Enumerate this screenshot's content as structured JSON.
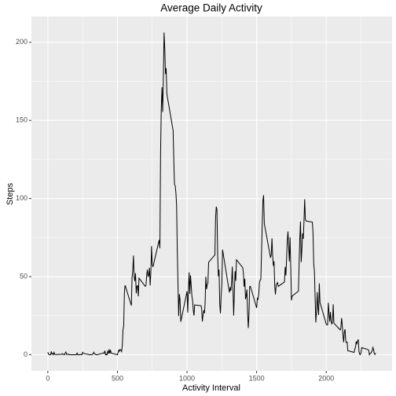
{
  "chart_data": {
    "type": "line",
    "title": "Average Daily Activity",
    "x_label": "Activity Interval",
    "y_label": "Steps",
    "x": [
      0,
      5,
      10,
      15,
      20,
      25,
      30,
      35,
      40,
      45,
      50,
      55,
      100,
      105,
      110,
      115,
      120,
      125,
      130,
      135,
      140,
      145,
      150,
      155,
      200,
      205,
      210,
      215,
      220,
      225,
      230,
      235,
      240,
      245,
      250,
      255,
      300,
      305,
      310,
      315,
      320,
      325,
      330,
      335,
      340,
      345,
      350,
      355,
      400,
      405,
      410,
      415,
      420,
      425,
      430,
      435,
      440,
      445,
      450,
      455,
      500,
      505,
      510,
      515,
      520,
      525,
      530,
      535,
      540,
      545,
      550,
      555,
      600,
      605,
      610,
      615,
      620,
      625,
      630,
      635,
      640,
      645,
      650,
      655,
      700,
      705,
      710,
      715,
      720,
      725,
      730,
      735,
      740,
      745,
      750,
      755,
      800,
      805,
      810,
      815,
      820,
      825,
      830,
      835,
      840,
      845,
      850,
      855,
      900,
      905,
      910,
      915,
      920,
      925,
      930,
      935,
      940,
      945,
      950,
      955,
      1000,
      1005,
      1010,
      1015,
      1020,
      1025,
      1030,
      1035,
      1040,
      1045,
      1050,
      1055,
      1100,
      1105,
      1110,
      1115,
      1120,
      1125,
      1130,
      1135,
      1140,
      1145,
      1150,
      1155,
      1200,
      1205,
      1210,
      1215,
      1220,
      1225,
      1230,
      1235,
      1240,
      1245,
      1250,
      1255,
      1300,
      1305,
      1310,
      1315,
      1320,
      1325,
      1330,
      1335,
      1340,
      1345,
      1350,
      1355,
      1400,
      1405,
      1410,
      1415,
      1420,
      1425,
      1430,
      1435,
      1440,
      1445,
      1450,
      1455,
      1500,
      1505,
      1510,
      1515,
      1520,
      1525,
      1530,
      1535,
      1540,
      1545,
      1550,
      1555,
      1600,
      1605,
      1610,
      1615,
      1620,
      1625,
      1630,
      1635,
      1640,
      1645,
      1650,
      1655,
      1700,
      1705,
      1710,
      1715,
      1720,
      1725,
      1730,
      1735,
      1740,
      1745,
      1750,
      1755,
      1800,
      1805,
      1810,
      1815,
      1820,
      1825,
      1830,
      1835,
      1840,
      1845,
      1850,
      1855,
      1900,
      1905,
      1910,
      1915,
      1920,
      1925,
      1930,
      1935,
      1940,
      1945,
      1950,
      1955,
      2000,
      2005,
      2010,
      2015,
      2020,
      2025,
      2030,
      2035,
      2040,
      2045,
      2050,
      2055,
      2100,
      2105,
      2110,
      2115,
      2120,
      2125,
      2130,
      2135,
      2140,
      2145,
      2150,
      2155,
      2200,
      2205,
      2210,
      2215,
      2220,
      2225,
      2230,
      2235,
      2240,
      2245,
      2250,
      2255,
      2300,
      2305,
      2310,
      2315,
      2320,
      2325,
      2330,
      2335,
      2340,
      2345,
      2350,
      2355
    ],
    "series": [
      {
        "name": "Steps",
        "color": "#000000",
        "values": [
          1.7,
          0.3,
          0.1,
          0.2,
          0,
          2.1,
          0.5,
          0.9,
          0,
          1.5,
          0.3,
          0.1,
          0.3,
          0.7,
          0.2,
          0.3,
          0,
          1.1,
          1.8,
          0.2,
          0.2,
          0.4,
          0.3,
          0,
          0,
          0,
          1.1,
          0,
          0,
          0.1,
          0,
          0.2,
          0,
          0,
          1.5,
          0.9,
          0,
          0,
          0,
          0,
          0.2,
          0.6,
          1.6,
          0.6,
          0.5,
          0.1,
          0,
          0,
          1.2,
          0.9,
          2.6,
          0,
          0.3,
          0,
          2.1,
          0.7,
          3.5,
          0.8,
          3.1,
          1.1,
          0,
          1.6,
          3,
          2.2,
          3.3,
          3,
          2.1,
          6.1,
          16,
          18.3,
          39.5,
          44.5,
          31.5,
          49.3,
          53.8,
          63.5,
          50,
          47.1,
          52.2,
          39.3,
          44,
          44.2,
          37.4,
          49,
          43.8,
          44.4,
          50.5,
          54.5,
          49.9,
          51,
          55.7,
          44.3,
          52.3,
          69.5,
          57.8,
          56.2,
          73.4,
          68.2,
          129.4,
          157.5,
          171.2,
          155.4,
          177.3,
          206.2,
          195.9,
          179.6,
          183.4,
          167,
          143.5,
          124,
          109.1,
          108.1,
          103.7,
          95.9,
          66.2,
          45.2,
          24.8,
          38.8,
          34.98,
          21.1,
          40.6,
          26.98,
          42.4,
          52.7,
          38.9,
          50.8,
          44.3,
          37.4,
          34.7,
          28.3,
          25.1,
          31.9,
          31.4,
          29.7,
          21.3,
          25.5,
          28.4,
          26.5,
          33.4,
          49.98,
          42,
          44.6,
          46,
          59.2,
          63.9,
          87.7,
          94.8,
          92.8,
          63.4,
          50.2,
          54.5,
          32.4,
          26.5,
          37.7,
          45.1,
          67.3,
          42.3,
          39.9,
          43.3,
          40.98,
          46.2,
          56.4,
          42.8,
          25.1,
          39.97,
          53.5,
          47.3,
          60.8,
          55.8,
          51.96,
          43.6,
          48.7,
          35.5,
          37.5,
          41.8,
          27.5,
          17.1,
          26.1,
          43.6,
          43.8,
          30,
          36.1,
          35.5,
          38.8,
          45.96,
          47.8,
          48.1,
          65.3,
          82.9,
          98.7,
          102.1,
          83.96,
          62.1,
          64.1,
          74.5,
          63.2,
          56.9,
          59.8,
          43.9,
          38.6,
          44.7,
          45.5,
          46.2,
          43.7,
          46.6,
          56.3,
          50.7,
          61.2,
          73,
          78.9,
          68.9,
          59.7,
          75.1,
          56.5,
          34.8,
          37.5,
          40.7,
          58,
          74.7,
          85.3,
          59.3,
          67.8,
          77.7,
          74.2,
          85.3,
          99.5,
          86.6,
          85.6,
          84.9,
          77.8,
          58,
          53.4,
          36.3,
          20.7,
          27.4,
          40,
          30.2,
          25.5,
          45.7,
          33.5,
          19.6,
          19,
          19.3,
          33.3,
          26.8,
          21.2,
          27.3,
          21.3,
          19.5,
          21.3,
          32.3,
          20.2,
          15.9,
          17.2,
          23.5,
          19.2,
          12.5,
          8,
          14.7,
          16.3,
          8.7,
          7.8,
          8.1,
          2.6,
          1.5,
          3.7,
          4.8,
          8.5,
          7.1,
          8.7,
          9.8,
          2.2,
          0.3,
          0.1,
          1.6,
          4.6,
          3.3,
          2.8,
          0,
          0.8,
          1,
          1.6,
          2.6,
          4.7,
          3.3,
          0.6,
          0.2,
          1.1
        ]
      }
    ],
    "xlim": [
      -117.75,
      2472.75
    ],
    "ylim": [
      -10.31,
      216.48
    ],
    "xticks": [
      0,
      500,
      1000,
      1500,
      2000
    ],
    "yticks": [
      0,
      50,
      100,
      150,
      200
    ],
    "xminor": [
      250,
      750,
      1250,
      1750,
      2250
    ],
    "yminor": [
      25,
      75,
      125,
      175
    ],
    "grid": true,
    "panel_color": "#ebebeb"
  }
}
